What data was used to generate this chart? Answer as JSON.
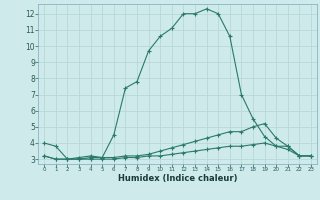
{
  "xlabel": "Humidex (Indice chaleur)",
  "bg_color": "#ceeaea",
  "grid_color": "#b8d8d8",
  "line_color": "#2a7a6a",
  "xlim": [
    -0.5,
    23.5
  ],
  "ylim": [
    2.7,
    12.6
  ],
  "xticks": [
    0,
    1,
    2,
    3,
    4,
    5,
    6,
    7,
    8,
    9,
    10,
    11,
    12,
    13,
    14,
    15,
    16,
    17,
    18,
    19,
    20,
    21,
    22,
    23
  ],
  "yticks": [
    3,
    4,
    5,
    6,
    7,
    8,
    9,
    10,
    11,
    12
  ],
  "series1_x": [
    0,
    1,
    2,
    3,
    4,
    5,
    6,
    7,
    8,
    9,
    10,
    11,
    12,
    13,
    14,
    15,
    16,
    17,
    18,
    19,
    20,
    21,
    22,
    23
  ],
  "series1_y": [
    4.0,
    3.8,
    3.0,
    3.1,
    3.2,
    3.1,
    4.5,
    7.4,
    7.8,
    9.7,
    10.6,
    11.1,
    12.0,
    12.0,
    12.3,
    12.0,
    10.6,
    7.0,
    5.5,
    4.4,
    3.8,
    3.8,
    3.2,
    3.2
  ],
  "series2_x": [
    0,
    1,
    2,
    3,
    4,
    5,
    6,
    7,
    8,
    9,
    10,
    11,
    12,
    13,
    14,
    15,
    16,
    17,
    18,
    19,
    20,
    21,
    22,
    23
  ],
  "series2_y": [
    3.2,
    3.0,
    3.0,
    3.0,
    3.1,
    3.1,
    3.1,
    3.2,
    3.2,
    3.3,
    3.5,
    3.7,
    3.9,
    4.1,
    4.3,
    4.5,
    4.7,
    4.7,
    5.0,
    5.2,
    4.3,
    3.8,
    3.2,
    3.2
  ],
  "series3_x": [
    0,
    1,
    2,
    3,
    4,
    5,
    6,
    7,
    8,
    9,
    10,
    11,
    12,
    13,
    14,
    15,
    16,
    17,
    18,
    19,
    20,
    21,
    22,
    23
  ],
  "series3_y": [
    3.2,
    3.0,
    3.0,
    3.0,
    3.0,
    3.0,
    3.0,
    3.1,
    3.1,
    3.2,
    3.2,
    3.3,
    3.4,
    3.5,
    3.6,
    3.7,
    3.8,
    3.8,
    3.9,
    4.0,
    3.8,
    3.6,
    3.2,
    3.2
  ]
}
